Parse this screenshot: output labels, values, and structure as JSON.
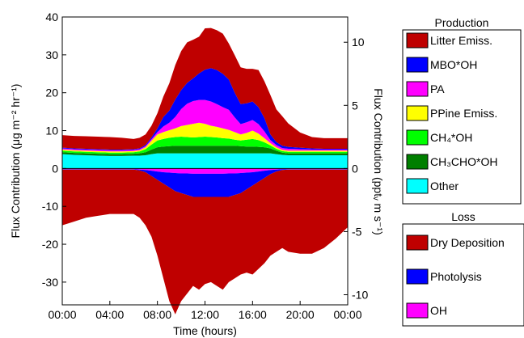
{
  "chart_data": {
    "type": "area",
    "stacked": true,
    "xlabel": "Time (hours)",
    "ylabel_left": "Flux Contribution (μg m⁻² hr⁻¹)",
    "ylabel_right": "Flux Contribution (pptᵥ m s⁻¹)",
    "x_ticks": [
      "00:00",
      "04:00",
      "08:00",
      "12:00",
      "16:00",
      "20:00",
      "00:00"
    ],
    "x_hours": [
      0,
      4,
      8,
      12,
      16,
      20,
      24
    ],
    "xlim": [
      0,
      24
    ],
    "ylim_left": [
      -36,
      40
    ],
    "y_ticks_left": [
      40,
      30,
      20,
      10,
      0,
      -10,
      -20,
      -30
    ],
    "y_ticks_right": [
      10,
      5,
      0,
      -5,
      -10
    ],
    "right_per_left": 0.3,
    "x": [
      0,
      1,
      2,
      3,
      4,
      5,
      6,
      6.5,
      7,
      7.5,
      8,
      8.5,
      9,
      9.5,
      10,
      10.5,
      11,
      11.5,
      12,
      12.5,
      13,
      13.5,
      14,
      14.5,
      15,
      15.5,
      16,
      16.5,
      17,
      17.5,
      18,
      18.5,
      19,
      20,
      21,
      22,
      23,
      24
    ],
    "production_series": [
      {
        "name": "Other",
        "color": "#00ffff",
        "values": [
          3.8,
          3.6,
          3.5,
          3.4,
          3.3,
          3.3,
          3.4,
          3.4,
          3.5,
          3.8,
          4.0,
          4.0,
          4.0,
          4.0,
          4.0,
          4.0,
          4.0,
          4.0,
          4.0,
          4.0,
          4.0,
          4.0,
          4.0,
          4.0,
          4.0,
          4.0,
          4.0,
          4.0,
          4.0,
          4.0,
          3.8,
          3.6,
          3.5,
          3.5,
          3.5,
          3.5,
          3.5,
          3.5
        ]
      },
      {
        "name": "CH3CHO*OH",
        "color": "#007f00",
        "values": [
          0.5,
          0.5,
          0.5,
          0.5,
          0.5,
          0.5,
          0.5,
          0.6,
          0.8,
          1.2,
          1.6,
          1.8,
          1.9,
          2.0,
          2.0,
          2.0,
          2.0,
          2.0,
          2.0,
          2.0,
          2.0,
          2.0,
          2.0,
          2.0,
          1.9,
          1.8,
          1.8,
          1.7,
          1.6,
          1.3,
          0.9,
          0.6,
          0.5,
          0.5,
          0.5,
          0.5,
          0.5,
          0.5
        ]
      },
      {
        "name": "CH4*OH",
        "color": "#00ff00",
        "values": [
          0.4,
          0.4,
          0.4,
          0.4,
          0.4,
          0.4,
          0.4,
          0.5,
          0.8,
          1.3,
          1.8,
          2.0,
          2.2,
          2.3,
          2.4,
          2.3,
          2.2,
          2.3,
          2.4,
          2.3,
          2.2,
          2.0,
          1.9,
          1.6,
          1.5,
          1.8,
          2.0,
          1.8,
          1.3,
          0.8,
          0.5,
          0.4,
          0.4,
          0.4,
          0.4,
          0.4,
          0.4,
          0.4
        ]
      },
      {
        "name": "PPine Emiss.",
        "color": "#ffff00",
        "values": [
          0.3,
          0.3,
          0.3,
          0.3,
          0.3,
          0.3,
          0.3,
          0.3,
          0.5,
          1.0,
          1.6,
          1.8,
          2.0,
          2.3,
          2.8,
          3.2,
          3.6,
          3.8,
          3.4,
          3.0,
          2.8,
          2.6,
          2.3,
          2.0,
          1.6,
          1.8,
          2.2,
          1.7,
          1.1,
          0.6,
          0.4,
          0.3,
          0.3,
          0.3,
          0.3,
          0.3,
          0.3,
          0.3
        ]
      },
      {
        "name": "PA",
        "color": "#ff00ff",
        "values": [
          0.3,
          0.3,
          0.3,
          0.3,
          0.3,
          0.3,
          0.3,
          0.3,
          0.3,
          0.4,
          0.6,
          1.5,
          2.0,
          3.0,
          4.5,
          5.6,
          6.0,
          6.0,
          6.3,
          6.4,
          6.0,
          5.6,
          5.3,
          3.9,
          2.7,
          2.8,
          2.8,
          2.5,
          1.8,
          0.8,
          0.6,
          0.5,
          0.5,
          0.4,
          0.3,
          0.3,
          0.3,
          0.3
        ]
      },
      {
        "name": "MBO*OH",
        "color": "#0000ff",
        "values": [
          0.2,
          0.2,
          0.2,
          0.2,
          0.2,
          0.2,
          0.2,
          0.2,
          0.3,
          0.5,
          1.0,
          2.5,
          3.2,
          4.6,
          5.0,
          5.5,
          6.0,
          7.0,
          8.0,
          8.8,
          9.0,
          8.8,
          8.0,
          6.5,
          5.3,
          5.0,
          4.9,
          4.5,
          3.5,
          1.5,
          0.8,
          0.6,
          0.5,
          0.4,
          0.3,
          0.2,
          0.2,
          0.2
        ]
      },
      {
        "name": "Litter Emiss.",
        "color": "#bf0000",
        "values": [
          3.3,
          3.3,
          3.3,
          3.3,
          3.3,
          3.1,
          2.7,
          2.8,
          2.8,
          3.1,
          4.0,
          5.4,
          7.2,
          9.1,
          10.3,
          10.7,
          10.2,
          9.7,
          10.9,
          10.6,
          10.5,
          10.6,
          9.5,
          9.9,
          9.7,
          9.1,
          8.6,
          9.8,
          9.7,
          10.4,
          8.6,
          7.8,
          6.2,
          4.0,
          3.0,
          2.8,
          2.8,
          2.8
        ]
      }
    ],
    "loss_series": [
      {
        "name": "OH",
        "color": "#ff00ff",
        "values": [
          -0.2,
          -0.2,
          -0.2,
          -0.2,
          -0.2,
          -0.2,
          -0.2,
          -0.3,
          -0.4,
          -0.6,
          -0.8,
          -1.0,
          -1.1,
          -1.2,
          -1.3,
          -1.3,
          -1.4,
          -1.4,
          -1.4,
          -1.4,
          -1.4,
          -1.4,
          -1.3,
          -1.3,
          -1.2,
          -1.1,
          -1.0,
          -0.8,
          -0.6,
          -0.4,
          -0.3,
          -0.2,
          -0.2,
          -0.2,
          -0.2,
          -0.2,
          -0.2,
          -0.2
        ]
      },
      {
        "name": "Photolysis",
        "color": "#0000ff",
        "values": [
          -0.1,
          -0.1,
          -0.1,
          -0.1,
          -0.1,
          -0.1,
          -0.1,
          -0.2,
          -0.6,
          -1.4,
          -2.2,
          -3.0,
          -3.9,
          -4.8,
          -5.2,
          -5.7,
          -6.1,
          -6.1,
          -6.1,
          -6.1,
          -6.1,
          -6.1,
          -6.2,
          -5.7,
          -5.3,
          -4.4,
          -3.5,
          -2.7,
          -1.9,
          -1.1,
          -0.5,
          -0.2,
          -0.1,
          -0.1,
          -0.1,
          -0.1,
          -0.1,
          -0.1
        ]
      },
      {
        "name": "Dry Deposition",
        "color": "#bf0000",
        "values": [
          -14.7,
          -13.7,
          -12.7,
          -12.2,
          -11.7,
          -11.7,
          -11.7,
          -12.5,
          -14.0,
          -16.0,
          -20.0,
          -25.0,
          -30.0,
          -32.5,
          -28.5,
          -26.0,
          -23.5,
          -24.5,
          -23.0,
          -22.5,
          -23.5,
          -24.5,
          -22.5,
          -22.0,
          -21.5,
          -22.0,
          -23.5,
          -23.0,
          -22.5,
          -21.5,
          -21.2,
          -20.6,
          -21.7,
          -22.2,
          -22.2,
          -20.7,
          -18.2,
          -15.2
        ]
      }
    ],
    "legend": {
      "production_title": "Production",
      "production_items": [
        {
          "label": "Litter Emiss.",
          "color": "#bf0000"
        },
        {
          "label": "MBO*OH",
          "color": "#0000ff"
        },
        {
          "label": "PA",
          "color": "#ff00ff"
        },
        {
          "label": "PPine Emiss.",
          "color": "#ffff00"
        },
        {
          "label": "CH₄*OH",
          "color": "#00ff00"
        },
        {
          "label": "CH₃CHO*OH",
          "color": "#007f00"
        },
        {
          "label": "Other",
          "color": "#00ffff"
        }
      ],
      "loss_title": "Loss",
      "loss_items": [
        {
          "label": "Dry Deposition",
          "color": "#bf0000"
        },
        {
          "label": "Photolysis",
          "color": "#0000ff"
        },
        {
          "label": "OH",
          "color": "#ff00ff"
        }
      ]
    }
  }
}
